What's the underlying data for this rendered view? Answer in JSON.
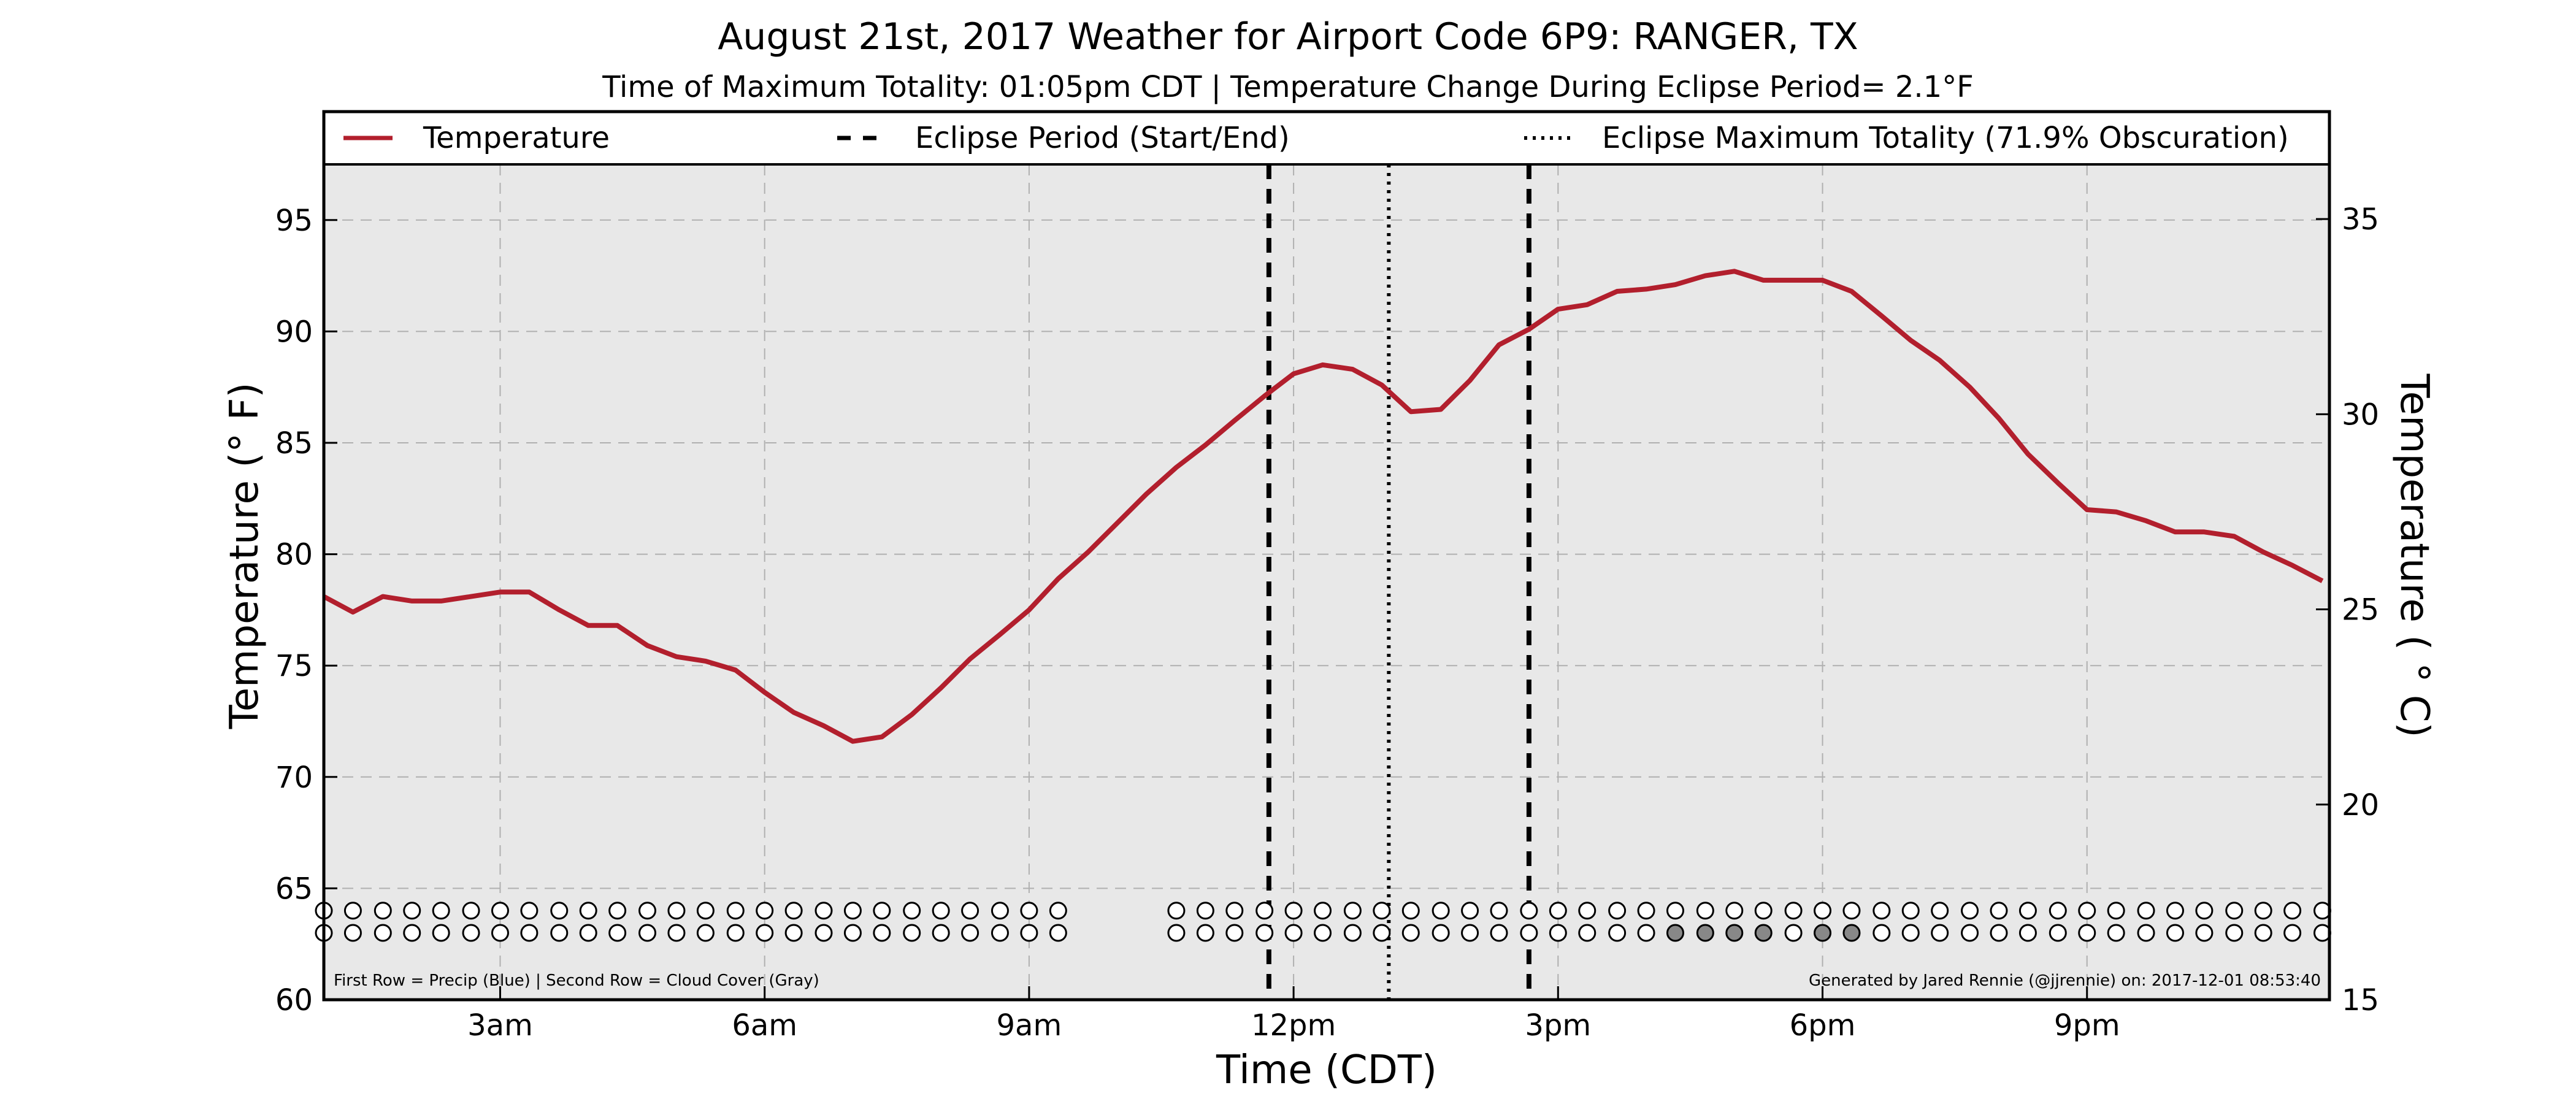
{
  "chart_data": {
    "type": "line",
    "title": "August 21st, 2017 Weather for Airport Code 6P9: RANGER, TX",
    "subtitle": "Time of Maximum Totality: 01:05pm CDT | Temperature Change During Eclipse Period= 2.1°F",
    "xlabel": "Time (CDT)",
    "ylabel": "Temperature (° F)",
    "ylabel_right": "Temperature ( ° C)",
    "xlim_hours": [
      1.0,
      23.75
    ],
    "ylim": [
      60,
      97.5
    ],
    "ylim_right_celsius": [
      15,
      36.4
    ],
    "x_ticks": [
      {
        "hour": 3,
        "label": "3am"
      },
      {
        "hour": 6,
        "label": "6am"
      },
      {
        "hour": 9,
        "label": "9am"
      },
      {
        "hour": 12,
        "label": "12pm"
      },
      {
        "hour": 15,
        "label": "3pm"
      },
      {
        "hour": 18,
        "label": "6pm"
      },
      {
        "hour": 21,
        "label": "9pm"
      }
    ],
    "y_ticks": [
      60,
      65,
      70,
      75,
      80,
      85,
      90,
      95
    ],
    "y_ticks_right": [
      15,
      20,
      25,
      30,
      35
    ],
    "grid": true,
    "legend_position": "top",
    "legend": [
      {
        "label": "Temperature",
        "style": "solid",
        "color": "#b21f2d"
      },
      {
        "label": "Eclipse Period (Start/End)",
        "style": "dashed",
        "color": "#000000"
      },
      {
        "label": "Eclipse Maximum Totality (71.9% Obscuration)",
        "style": "dotted",
        "color": "#000000"
      }
    ],
    "series": [
      {
        "name": "Temperature",
        "color": "#b21f2d",
        "x_hours": [
          1.0,
          1.33,
          1.67,
          2.0,
          2.33,
          2.67,
          3.0,
          3.33,
          3.67,
          4.0,
          4.33,
          4.67,
          5.0,
          5.33,
          5.67,
          6.0,
          6.33,
          6.67,
          7.0,
          7.33,
          7.67,
          8.0,
          8.33,
          8.67,
          9.0,
          9.33,
          9.67,
          10.0,
          10.33,
          10.67,
          11.0,
          11.33,
          11.67,
          12.0,
          12.33,
          12.67,
          13.0,
          13.33,
          13.67,
          14.0,
          14.33,
          14.67,
          15.0,
          15.33,
          15.67,
          16.0,
          16.33,
          16.67,
          17.0,
          17.33,
          17.67,
          18.0,
          18.33,
          18.67,
          19.0,
          19.33,
          19.67,
          20.0,
          20.33,
          20.67,
          21.0,
          21.33,
          21.67,
          22.0,
          22.33,
          22.67,
          23.0,
          23.33,
          23.67
        ],
        "values": [
          78.1,
          77.4,
          78.1,
          77.9,
          77.9,
          78.1,
          78.3,
          78.3,
          77.5,
          76.8,
          76.8,
          75.9,
          75.4,
          75.2,
          74.8,
          73.8,
          72.9,
          72.3,
          71.6,
          71.8,
          72.8,
          74.0,
          75.3,
          76.4,
          77.5,
          78.9,
          80.1,
          81.4,
          82.7,
          83.9,
          84.9,
          86.0,
          87.1,
          88.1,
          88.5,
          88.3,
          87.6,
          86.4,
          86.5,
          87.8,
          89.4,
          90.1,
          91.0,
          91.2,
          91.8,
          91.9,
          92.1,
          92.5,
          92.7,
          92.3,
          92.3,
          92.3,
          91.8,
          90.7,
          89.6,
          88.7,
          87.5,
          86.1,
          84.5,
          83.2,
          82.0,
          81.9,
          81.5,
          81.0,
          81.0,
          80.8,
          80.1,
          79.5,
          78.8
        ]
      }
    ],
    "eclipse_start_hour": 11.72,
    "eclipse_max_hour": 13.08,
    "eclipse_end_hour": 14.67,
    "precip_row": {
      "label": "First Row = Precip (Blue)",
      "x_hours": [
        1.0,
        1.33,
        1.67,
        2.0,
        2.33,
        2.67,
        3.0,
        3.33,
        3.67,
        4.0,
        4.33,
        4.67,
        5.0,
        5.33,
        5.67,
        6.0,
        6.33,
        6.67,
        7.0,
        7.33,
        7.67,
        8.0,
        8.33,
        8.67,
        9.0,
        9.33,
        10.67,
        11.0,
        11.33,
        11.67,
        12.0,
        12.33,
        12.67,
        13.0,
        13.33,
        13.67,
        14.0,
        14.33,
        14.67,
        15.0,
        15.33,
        15.67,
        16.0,
        16.33,
        16.67,
        17.0,
        17.33,
        17.67,
        18.0,
        18.33,
        18.67,
        19.0,
        19.33,
        19.67,
        20.0,
        20.33,
        20.67,
        21.0,
        21.33,
        21.67,
        22.0,
        22.33,
        22.67,
        23.0,
        23.33,
        23.67
      ],
      "value_y": 64
    },
    "cloud_row": {
      "label": "Second Row = Cloud Cover (Gray)",
      "x_hours": [
        1.0,
        1.33,
        1.67,
        2.0,
        2.33,
        2.67,
        3.0,
        3.33,
        3.67,
        4.0,
        4.33,
        4.67,
        5.0,
        5.33,
        5.67,
        6.0,
        6.33,
        6.67,
        7.0,
        7.33,
        7.67,
        8.0,
        8.33,
        8.67,
        9.0,
        9.33,
        10.67,
        11.0,
        11.33,
        11.67,
        12.0,
        12.33,
        12.67,
        13.0,
        13.33,
        13.67,
        14.0,
        14.33,
        14.67,
        15.0,
        15.33,
        15.67,
        16.0,
        16.33,
        16.67,
        17.0,
        17.33,
        17.67,
        18.0,
        18.33,
        18.67,
        19.0,
        19.33,
        19.67,
        20.0,
        20.33,
        20.67,
        21.0,
        21.33,
        21.67,
        22.0,
        22.33,
        22.67,
        23.0,
        23.33,
        23.67
      ],
      "filled_hours": [
        16.33,
        16.67,
        17.0,
        17.33,
        18.0,
        18.33
      ],
      "value_y": 63
    },
    "footer_left": "First Row = Precip (Blue) | Second Row = Cloud Cover (Gray)",
    "footer_right": "Generated by Jared Rennie (@jjrennie) on: 2017-12-01 08:53:40",
    "colors": {
      "plot_background": "#e8e8e8",
      "temperature": "#b21f2d",
      "grid": "#b0b0b0",
      "cloud_fill": "#888888"
    }
  }
}
